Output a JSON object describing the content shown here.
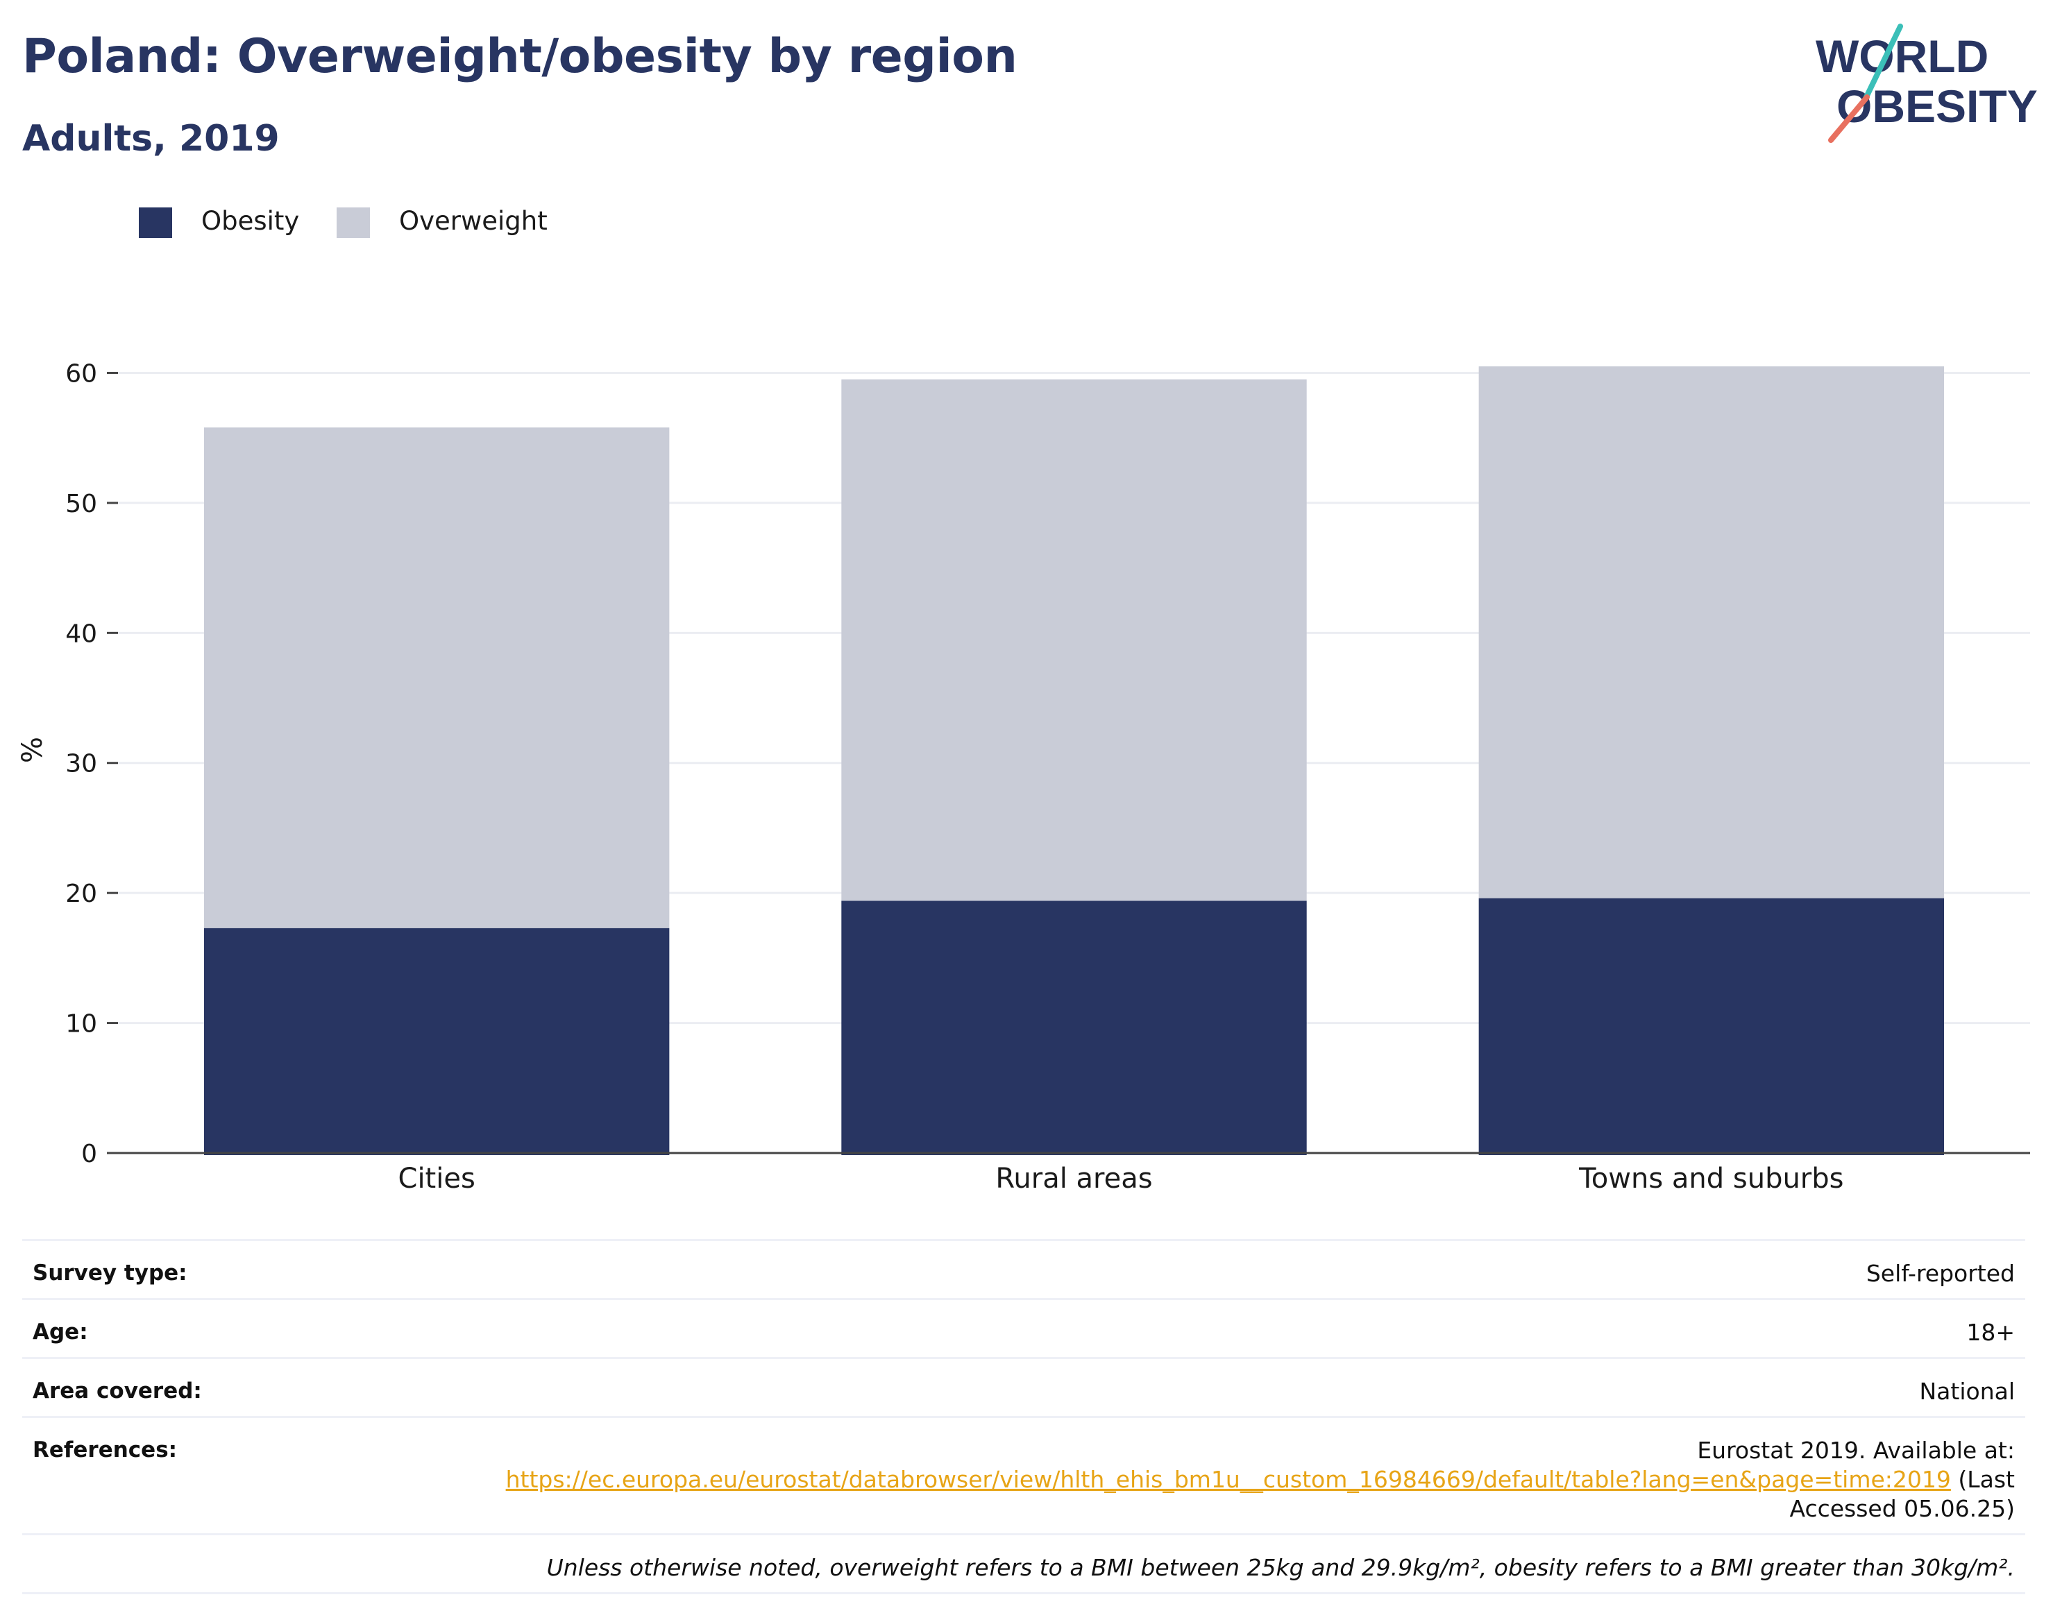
{
  "header": {
    "title": "Poland: Overweight/obesity by region",
    "subtitle": "Adults, 2019"
  },
  "logo": {
    "line1": "WORLD",
    "line2": "OBESITY"
  },
  "legend": [
    {
      "label": "Obesity",
      "color": "#283562"
    },
    {
      "label": "Overweight",
      "color": "#c9ccd7"
    }
  ],
  "chart_data": {
    "type": "bar",
    "stacked": true,
    "categories": [
      "Cities",
      "Rural areas",
      "Towns and suburbs"
    ],
    "series": [
      {
        "name": "Obesity",
        "color": "#283562",
        "values": [
          17.3,
          19.4,
          19.6
        ]
      },
      {
        "name": "Overweight",
        "color": "#c9ccd7",
        "values": [
          38.5,
          40.1,
          40.9
        ]
      }
    ],
    "ylabel": "%",
    "ylim": [
      0,
      62
    ],
    "yticks": [
      0,
      10,
      20,
      30,
      40,
      50,
      60
    ],
    "grid": true,
    "legend_position": "top-left"
  },
  "info": {
    "survey_type": {
      "label": "Survey type:",
      "value": "Self-reported"
    },
    "age": {
      "label": "Age:",
      "value": "18+"
    },
    "area": {
      "label": "Area covered:",
      "value": "National"
    },
    "references": {
      "label": "References:",
      "text_before": "Eurostat 2019. Available at:",
      "url": "https://ec.europa.eu/eurostat/databrowser/view/hlth_ehis_bm1u__custom_16984669/default/table?lang=en&page=time:2019",
      "text_after": "(Last Accessed 05.06.25)"
    },
    "note": "Unless otherwise noted, overweight refers to a BMI between 25kg and 29.9kg/m², obesity refers to a BMI greater than 30kg/m²."
  }
}
